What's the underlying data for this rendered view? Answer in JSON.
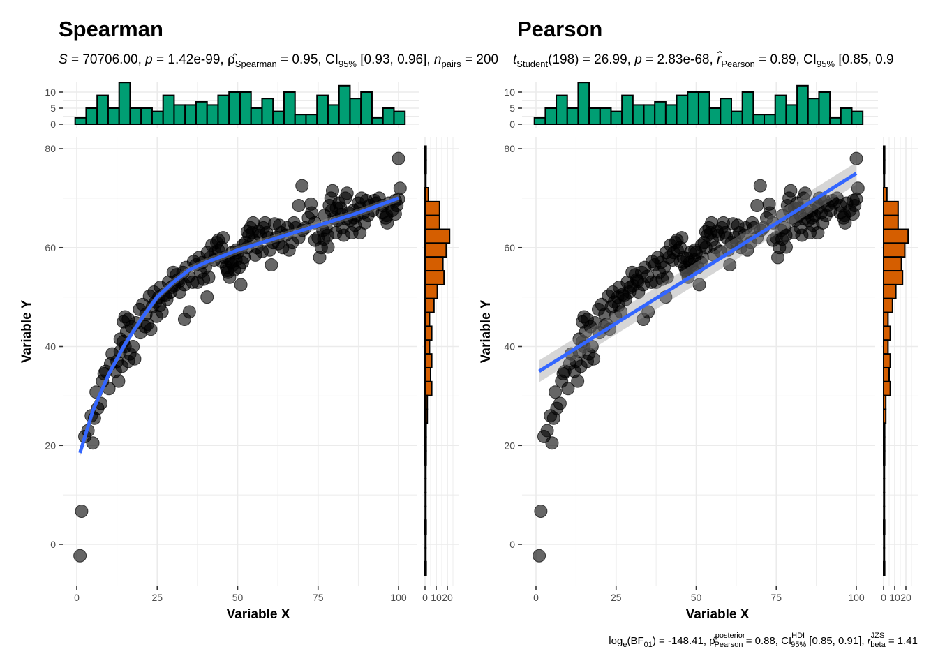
{
  "chart_data": [
    {
      "type": "scatter",
      "title": "Spearman",
      "subtitle": {
        "S": "70706.00",
        "p": "1.42e-99",
        "estimate_symbol": "ρ̂",
        "estimate_sub": "Spearman",
        "estimate": "0.95",
        "ci_label": "CI",
        "ci_sub": "95%",
        "ci": "[0.93, 0.96]",
        "n_label": "n",
        "n_sub": "pairs",
        "n": "200"
      },
      "xlabel": "Variable X",
      "ylabel": "Variable Y",
      "xlim": [
        -2.5,
        104
      ],
      "ylim": [
        -8,
        80
      ],
      "xticks": [
        0,
        25,
        50,
        75,
        100
      ],
      "yticks": [
        0,
        20,
        40,
        60,
        80
      ],
      "smooth": {
        "method": "loess",
        "color": "#3366FF",
        "x": [
          1,
          5,
          10,
          15,
          20,
          25,
          30,
          35,
          40,
          45,
          50,
          55,
          60,
          65,
          70,
          75,
          80,
          85,
          90,
          95,
          100
        ],
        "y": [
          18.5,
          27,
          34.5,
          40.5,
          45.5,
          50,
          53,
          55.5,
          57,
          58.2,
          59.5,
          60.5,
          61.5,
          62.5,
          63.5,
          64.5,
          65.5,
          66.5,
          67.6,
          68.8,
          70
        ]
      },
      "points_color": "#000000",
      "grid": true
    },
    {
      "type": "scatter",
      "title": "Pearson",
      "subtitle": {
        "stat_label": "t",
        "stat_sub": "Student",
        "df": "198",
        "stat": "26.99",
        "p": "2.83e-68",
        "estimate_symbol": "r̂",
        "estimate_sub": "Pearson",
        "estimate": "0.89",
        "ci_label": "CI",
        "ci_sub": "95%",
        "ci": "[0.85, 0.9"
      },
      "caption": {
        "bf_label": "log",
        "bf_sub": "e",
        "bf_inner": "(BF",
        "bf_inner_sub": "01",
        "bf_value": ") = -148.41,",
        "rho_symbol": "ρ̂",
        "rho_sup": "posterior",
        "rho_sub": "Pearson",
        "rho_value": "= 0.88,",
        "ci_label": "CI",
        "ci_sup": "HDI",
        "ci_sub": "95%",
        "ci_value": "[0.85, 0.91],",
        "r_label": "r",
        "r_sup": "JZS",
        "r_sub": "beta",
        "r_value": "= 1.41"
      },
      "xlabel": "Variable X",
      "ylabel": "Variable Y",
      "xlim": [
        -2.5,
        104
      ],
      "ylim": [
        -8,
        80
      ],
      "xticks": [
        0,
        25,
        50,
        75,
        100
      ],
      "yticks": [
        0,
        20,
        40,
        60,
        80
      ],
      "smooth": {
        "method": "lm",
        "color": "#3366FF",
        "x": [
          1,
          100
        ],
        "y": [
          35,
          75
        ]
      },
      "points_color": "#000000",
      "grid": true
    }
  ],
  "marginal_x_histogram": {
    "color": "#009E73",
    "yticks": [
      0,
      5,
      10
    ],
    "bin_range": [
      -0.5,
      102
    ],
    "counts": [
      2,
      5,
      9,
      5,
      13,
      5,
      5,
      4,
      9,
      6,
      6,
      7,
      6,
      9,
      10,
      10,
      5,
      8,
      4,
      10,
      3,
      3,
      9,
      6,
      12,
      8,
      10,
      2,
      5,
      4
    ]
  },
  "marginal_y_histogram": {
    "color": "#D55E00",
    "xticks": [
      0,
      10,
      20
    ],
    "xtick_labels": [
      "0",
      "10",
      "20"
    ],
    "bin_edges_top": 80.5,
    "bin_width": 2.8,
    "counts": [
      1,
      1,
      0,
      3,
      13,
      13,
      22,
      19,
      16,
      17,
      11,
      8,
      4,
      6,
      4,
      6,
      5,
      6,
      2,
      2,
      1,
      1,
      1,
      0,
      0,
      0,
      0,
      1,
      0,
      0,
      1
    ]
  },
  "points": [
    [
      1.0,
      -2.3
    ],
    [
      1.5,
      6.7
    ],
    [
      2.5,
      21.8
    ],
    [
      3.5,
      23
    ],
    [
      5,
      20.5
    ],
    [
      4.5,
      26
    ],
    [
      5.5,
      25.5
    ],
    [
      6.5,
      27.5
    ],
    [
      7.5,
      28.5
    ],
    [
      6,
      30.8
    ],
    [
      8,
      33
    ],
    [
      8.5,
      34.5
    ],
    [
      9,
      35
    ],
    [
      10,
      31.5
    ],
    [
      10.5,
      36.5
    ],
    [
      11,
      38.5
    ],
    [
      12,
      35
    ],
    [
      12.5,
      37
    ],
    [
      13,
      33
    ],
    [
      13.5,
      39
    ],
    [
      14,
      36
    ],
    [
      14.5,
      41
    ],
    [
      15,
      40
    ],
    [
      15.5,
      43
    ],
    [
      16,
      45.5
    ],
    [
      14.5,
      45
    ],
    [
      15,
      46
    ],
    [
      16.5,
      38.5
    ],
    [
      17,
      44
    ],
    [
      18,
      37.5
    ],
    [
      17.5,
      40
    ],
    [
      16,
      37
    ],
    [
      13.5,
      41.5
    ],
    [
      19.5,
      47.5
    ],
    [
      20.5,
      48.5
    ],
    [
      21.5,
      46.5
    ],
    [
      22,
      44.5
    ],
    [
      23,
      43.5
    ],
    [
      23.5,
      48
    ],
    [
      24,
      51
    ],
    [
      24.5,
      49
    ],
    [
      25.5,
      50
    ],
    [
      26.5,
      47
    ],
    [
      26,
      52
    ],
    [
      27,
      50.5
    ],
    [
      28,
      49.5
    ],
    [
      28.5,
      53
    ],
    [
      29.5,
      52
    ],
    [
      30,
      55
    ],
    [
      31,
      54.5
    ],
    [
      31.5,
      53.5
    ],
    [
      32,
      51
    ],
    [
      33,
      55
    ],
    [
      34,
      56
    ],
    [
      35,
      47
    ],
    [
      33.5,
      45.5
    ],
    [
      36,
      53
    ],
    [
      37,
      56.5
    ],
    [
      38,
      58
    ],
    [
      38.5,
      55
    ],
    [
      39,
      57
    ],
    [
      40,
      56
    ],
    [
      40.5,
      50
    ],
    [
      41,
      54
    ],
    [
      41.5,
      58
    ],
    [
      42,
      60.5
    ],
    [
      43,
      59
    ],
    [
      43.5,
      61
    ],
    [
      44,
      61.5
    ],
    [
      45,
      60
    ],
    [
      45.5,
      62
    ],
    [
      46,
      58
    ],
    [
      46.5,
      56
    ],
    [
      47,
      55
    ],
    [
      47.5,
      54
    ],
    [
      48,
      57
    ],
    [
      48.5,
      56.5
    ],
    [
      49,
      55.5
    ],
    [
      49.5,
      57.5
    ],
    [
      50,
      59
    ],
    [
      50.5,
      56
    ],
    [
      51,
      52.5
    ],
    [
      51.5,
      57
    ],
    [
      52,
      58
    ],
    [
      52.5,
      61
    ],
    [
      53,
      60
    ],
    [
      53.5,
      62.5
    ],
    [
      54,
      64
    ],
    [
      54.5,
      63
    ],
    [
      55,
      61.5
    ],
    [
      55.5,
      58.5
    ],
    [
      56,
      60
    ],
    [
      57,
      62.5
    ],
    [
      58,
      64
    ],
    [
      58.5,
      65
    ],
    [
      59,
      63
    ],
    [
      60,
      59.5
    ],
    [
      60.5,
      56.5
    ],
    [
      61,
      61
    ],
    [
      62,
      62
    ],
    [
      63,
      64.5
    ],
    [
      63.5,
      63
    ],
    [
      64,
      60
    ],
    [
      65,
      62.5
    ],
    [
      66,
      59.5
    ],
    [
      67,
      61
    ],
    [
      68,
      64
    ],
    [
      69,
      68.5
    ],
    [
      70,
      72.5
    ],
    [
      71,
      64
    ],
    [
      72,
      66
    ],
    [
      73,
      67
    ],
    [
      74,
      65
    ],
    [
      75,
      62
    ],
    [
      75.5,
      58
    ],
    [
      76,
      60
    ],
    [
      76.5,
      63.5
    ],
    [
      77,
      66.5
    ],
    [
      77.5,
      64
    ],
    [
      78,
      62.5
    ],
    [
      78.5,
      68.5
    ],
    [
      79,
      70
    ],
    [
      79.5,
      71.5
    ],
    [
      80,
      66
    ],
    [
      80.5,
      63
    ],
    [
      81,
      65.5
    ],
    [
      81.5,
      69
    ],
    [
      82,
      68
    ],
    [
      82.5,
      64
    ],
    [
      83,
      62.5
    ],
    [
      83.5,
      70
    ],
    [
      84,
      71
    ],
    [
      84.5,
      67
    ],
    [
      85,
      65.5
    ],
    [
      85.5,
      63
    ],
    [
      86,
      67.5
    ],
    [
      86.5,
      64.5
    ],
    [
      87,
      66.5
    ],
    [
      87.5,
      69
    ],
    [
      88,
      68
    ],
    [
      88.5,
      70
    ],
    [
      89,
      67
    ],
    [
      89.5,
      65
    ],
    [
      90,
      69.5
    ],
    [
      91,
      68.5
    ],
    [
      92,
      67.5
    ],
    [
      93,
      69
    ],
    [
      94,
      70
    ],
    [
      95,
      67
    ],
    [
      96,
      66
    ],
    [
      96.5,
      65
    ],
    [
      97,
      69
    ],
    [
      98,
      67.5
    ],
    [
      99,
      69.5
    ],
    [
      100,
      78
    ],
    [
      100.5,
      72
    ],
    [
      100,
      69.8
    ],
    [
      99.5,
      68.5
    ],
    [
      99,
      66.8
    ],
    [
      96.3,
      66.5
    ],
    [
      95,
      68.5
    ],
    [
      92.5,
      69.5
    ],
    [
      90.5,
      66.5
    ],
    [
      88,
      63
    ],
    [
      86.2,
      66
    ],
    [
      83.8,
      65.8
    ],
    [
      82.3,
      66.7
    ],
    [
      80.7,
      68
    ],
    [
      79.2,
      67.5
    ],
    [
      78.1,
      60.1
    ],
    [
      76.8,
      61.7
    ],
    [
      74,
      61.5
    ],
    [
      72.8,
      68.8
    ],
    [
      70.2,
      63.5
    ],
    [
      69,
      62
    ],
    [
      67.5,
      65
    ],
    [
      65.5,
      64
    ],
    [
      62.7,
      60.8
    ],
    [
      61.5,
      64.8
    ],
    [
      59.5,
      62
    ],
    [
      57.6,
      59.2
    ],
    [
      56.5,
      63.3
    ],
    [
      54.8,
      65
    ],
    [
      53,
      63.2
    ],
    [
      51.7,
      60.5
    ],
    [
      49.6,
      59.5
    ],
    [
      48.2,
      59
    ],
    [
      47.2,
      57.8
    ],
    [
      46.8,
      55.4
    ],
    [
      45.1,
      57.2
    ],
    [
      44.1,
      59.4
    ],
    [
      42.7,
      57.5
    ],
    [
      40.6,
      59
    ],
    [
      39.4,
      53.6
    ],
    [
      37.5,
      53
    ],
    [
      36.3,
      57.2
    ],
    [
      34.8,
      54.2
    ],
    [
      33.5,
      52.5
    ],
    [
      31.8,
      53.2
    ],
    [
      30.3,
      52.3
    ],
    [
      29.2,
      51
    ],
    [
      27.5,
      50.3
    ],
    [
      25.8,
      48.3
    ],
    [
      24.8,
      46.1
    ],
    [
      22.6,
      50.2
    ],
    [
      21.3,
      44
    ],
    [
      19.8,
      42.8
    ],
    [
      18.4,
      44.8
    ]
  ]
}
